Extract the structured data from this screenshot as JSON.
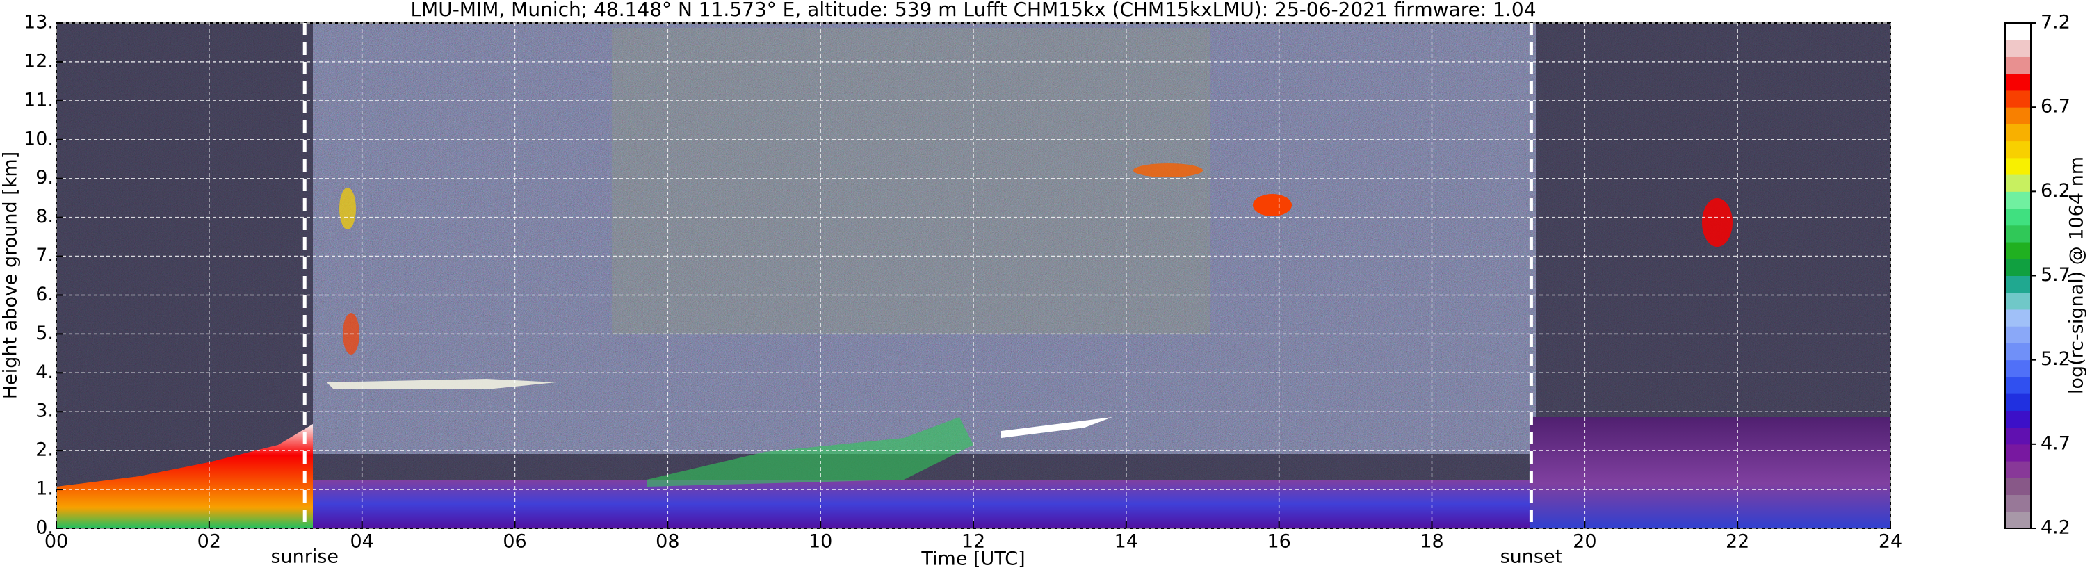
{
  "chart_data": {
    "type": "heatmap",
    "title": "LMU-MIM, Munich; 48.148° N 11.573° E, altitude: 539 m    Lufft CHM15kx (CHM15kxLMU): 25-06-2021    firmware: 1.04",
    "x_label": "Time [UTC]",
    "y_label": "Height above ground [km]",
    "xlim": [
      0,
      24
    ],
    "xticks": [
      {
        "value": 0,
        "label": "00"
      },
      {
        "value": 2,
        "label": "02"
      },
      {
        "value": 4,
        "label": "04"
      },
      {
        "value": 6,
        "label": "06"
      },
      {
        "value": 8,
        "label": "08"
      },
      10,
      12,
      14,
      16,
      18,
      20,
      22,
      24
    ],
    "ylim": [
      0,
      13
    ],
    "yticks": [
      {
        "value": 0,
        "label": "0."
      },
      {
        "value": 1,
        "label": "1."
      },
      {
        "value": 2,
        "label": "2."
      },
      {
        "value": 3,
        "label": "3."
      },
      {
        "value": 4,
        "label": "4."
      },
      {
        "value": 5,
        "label": "5."
      },
      {
        "value": 6,
        "label": "6."
      },
      {
        "value": 7,
        "label": "7."
      },
      {
        "value": 8,
        "label": "8."
      },
      {
        "value": 9,
        "label": "9."
      },
      {
        "value": 10,
        "label": "10."
      },
      {
        "value": 11,
        "label": "11."
      },
      {
        "value": 12,
        "label": "12."
      },
      {
        "value": 13,
        "label": "13."
      }
    ],
    "grid": true,
    "annotations": [
      {
        "text": "sunrise",
        "x": 3.25
      },
      {
        "text": "sunset",
        "x": 19.3
      }
    ],
    "colorbar": {
      "label": "log(rc-signal) @ 1064 nm",
      "lim": [
        4.2,
        7.2
      ],
      "ticks": [
        4.2,
        4.7,
        5.2,
        5.7,
        6.2,
        6.7,
        7.2
      ],
      "colors": [
        "#a898a8",
        "#987898",
        "#885888",
        "#883898",
        "#7818a0",
        "#6010b0",
        "#3c10c8",
        "#2030e0",
        "#3050f0",
        "#5070f8",
        "#7090f8",
        "#8aa8f8",
        "#a0c0f8",
        "#70c8c8",
        "#20a890",
        "#10a040",
        "#20b020",
        "#30c858",
        "#40e080",
        "#70f0a0",
        "#c8f060",
        "#f8f000",
        "#f8d000",
        "#f8b000",
        "#f88000",
        "#f84000",
        "#f80000",
        "#e89090",
        "#f0c8c8",
        "#ffffff"
      ]
    }
  }
}
